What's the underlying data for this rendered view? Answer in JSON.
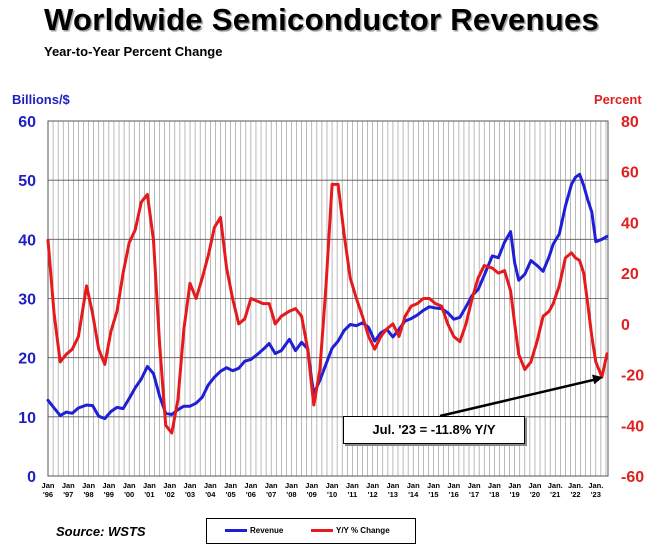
{
  "title": "Worldwide Semiconductor Revenues",
  "subtitle": "Year-to-Year Percent Change",
  "source": "Source: WSTS",
  "colors": {
    "revenue": "#1f1fd6",
    "yoy": "#e41a1c",
    "left_axis": "#1f1fbf",
    "right_axis": "#e0201f"
  },
  "chart_data": {
    "type": "line",
    "ylabel_left": "Billions/$",
    "ylabel_right": "Percent",
    "ylim_left": [
      0,
      60
    ],
    "ylim_right": [
      -60,
      80
    ],
    "yticks_left": [
      "0",
      "10",
      "20",
      "30",
      "40",
      "50",
      "60"
    ],
    "yticks_right": [
      "-60",
      "-40",
      "-20",
      "0",
      "20",
      "40",
      "60",
      "80"
    ],
    "x_range": [
      1996.0,
      2023.6
    ],
    "xticks": [
      {
        "x": 1996,
        "month": "Jan",
        "year": "'96"
      },
      {
        "x": 1997,
        "month": "Jan",
        "year": "'97"
      },
      {
        "x": 1998,
        "month": "Jan",
        "year": "'98"
      },
      {
        "x": 1999,
        "month": "Jan",
        "year": "'99"
      },
      {
        "x": 2000,
        "month": "Jan",
        "year": "'00"
      },
      {
        "x": 2001,
        "month": "Jan",
        "year": "'01"
      },
      {
        "x": 2002,
        "month": "Jan",
        "year": "'02"
      },
      {
        "x": 2003,
        "month": "Jan",
        "year": "'03"
      },
      {
        "x": 2004,
        "month": "Jan",
        "year": "'04"
      },
      {
        "x": 2005,
        "month": "Jan",
        "year": "'05"
      },
      {
        "x": 2006,
        "month": "Jan",
        "year": "'06"
      },
      {
        "x": 2007,
        "month": "Jan",
        "year": "'07"
      },
      {
        "x": 2008,
        "month": "Jan",
        "year": "'08"
      },
      {
        "x": 2009,
        "month": "Jan",
        "year": "'09"
      },
      {
        "x": 2010,
        "month": "Jan",
        "year": "'10"
      },
      {
        "x": 2011,
        "month": "Jan",
        "year": "'11"
      },
      {
        "x": 2012,
        "month": "Jan",
        "year": "'12"
      },
      {
        "x": 2013,
        "month": "Jan",
        "year": "'13"
      },
      {
        "x": 2014,
        "month": "Jan",
        "year": "'14"
      },
      {
        "x": 2015,
        "month": "Jan",
        "year": "'15"
      },
      {
        "x": 2016,
        "month": "Jan",
        "year": "'16"
      },
      {
        "x": 2017,
        "month": "Jan",
        "year": "'17"
      },
      {
        "x": 2018,
        "month": "Jan",
        "year": "'18"
      },
      {
        "x": 2019,
        "month": "Jan",
        "year": "'19"
      },
      {
        "x": 2020,
        "month": "Jan",
        "year": "'20"
      },
      {
        "x": 2021,
        "month": "Jan.",
        "year": "'21"
      },
      {
        "x": 2022,
        "month": "Jan.",
        "year": "'22"
      },
      {
        "x": 2023,
        "month": "Jan.",
        "year": "'23"
      }
    ],
    "grid": true,
    "legend_position": "bottom",
    "series": [
      {
        "name": "Revenue",
        "axis": "left",
        "points": [
          [
            1996.0,
            12.8
          ],
          [
            1996.3,
            11.5
          ],
          [
            1996.6,
            10.2
          ],
          [
            1996.9,
            10.8
          ],
          [
            1997.2,
            10.6
          ],
          [
            1997.5,
            11.5
          ],
          [
            1997.9,
            12.0
          ],
          [
            1998.2,
            11.9
          ],
          [
            1998.5,
            10.1
          ],
          [
            1998.8,
            9.7
          ],
          [
            1999.1,
            10.9
          ],
          [
            1999.4,
            11.6
          ],
          [
            1999.7,
            11.4
          ],
          [
            2000.0,
            13.1
          ],
          [
            2000.3,
            14.9
          ],
          [
            2000.6,
            16.4
          ],
          [
            2000.9,
            18.5
          ],
          [
            2001.2,
            17.3
          ],
          [
            2001.5,
            13.5
          ],
          [
            2001.8,
            10.6
          ],
          [
            2002.1,
            10.4
          ],
          [
            2002.4,
            11.2
          ],
          [
            2002.7,
            11.8
          ],
          [
            2003.0,
            11.8
          ],
          [
            2003.3,
            12.3
          ],
          [
            2003.6,
            13.3
          ],
          [
            2003.9,
            15.4
          ],
          [
            2004.2,
            16.7
          ],
          [
            2004.5,
            17.7
          ],
          [
            2004.8,
            18.3
          ],
          [
            2005.1,
            17.8
          ],
          [
            2005.4,
            18.2
          ],
          [
            2005.7,
            19.4
          ],
          [
            2006.0,
            19.7
          ],
          [
            2006.3,
            20.5
          ],
          [
            2006.6,
            21.4
          ],
          [
            2006.9,
            22.4
          ],
          [
            2007.2,
            20.7
          ],
          [
            2007.5,
            21.2
          ],
          [
            2007.9,
            23.1
          ],
          [
            2008.2,
            21.2
          ],
          [
            2008.5,
            22.6
          ],
          [
            2008.8,
            21.5
          ],
          [
            2009.0,
            16.1
          ],
          [
            2009.1,
            13.9
          ],
          [
            2009.4,
            16.2
          ],
          [
            2009.7,
            18.9
          ],
          [
            2010.0,
            21.6
          ],
          [
            2010.3,
            22.8
          ],
          [
            2010.6,
            24.6
          ],
          [
            2010.9,
            25.6
          ],
          [
            2011.2,
            25.4
          ],
          [
            2011.5,
            25.9
          ],
          [
            2011.8,
            25.1
          ],
          [
            2012.1,
            22.8
          ],
          [
            2012.4,
            24.2
          ],
          [
            2012.7,
            24.8
          ],
          [
            2013.0,
            23.5
          ],
          [
            2013.3,
            24.8
          ],
          [
            2013.6,
            26.2
          ],
          [
            2013.9,
            26.6
          ],
          [
            2014.2,
            27.2
          ],
          [
            2014.5,
            28.0
          ],
          [
            2014.8,
            28.6
          ],
          [
            2015.1,
            28.4
          ],
          [
            2015.4,
            28.3
          ],
          [
            2015.7,
            27.6
          ],
          [
            2016.0,
            26.5
          ],
          [
            2016.3,
            26.8
          ],
          [
            2016.6,
            28.6
          ],
          [
            2016.9,
            30.5
          ],
          [
            2017.2,
            31.5
          ],
          [
            2017.5,
            33.9
          ],
          [
            2017.9,
            37.2
          ],
          [
            2018.2,
            36.9
          ],
          [
            2018.5,
            39.5
          ],
          [
            2018.8,
            41.3
          ],
          [
            2019.0,
            36.0
          ],
          [
            2019.2,
            33.1
          ],
          [
            2019.5,
            34.1
          ],
          [
            2019.8,
            36.4
          ],
          [
            2020.1,
            35.6
          ],
          [
            2020.4,
            34.6
          ],
          [
            2020.7,
            37.1
          ],
          [
            2020.9,
            39.2
          ],
          [
            2021.2,
            40.9
          ],
          [
            2021.5,
            45.6
          ],
          [
            2021.8,
            49.3
          ],
          [
            2022.0,
            50.5
          ],
          [
            2022.2,
            51.0
          ],
          [
            2022.4,
            49.1
          ],
          [
            2022.6,
            46.7
          ],
          [
            2022.8,
            44.6
          ],
          [
            2023.0,
            39.6
          ],
          [
            2023.3,
            40.0
          ],
          [
            2023.55,
            40.5
          ]
        ]
      },
      {
        "name": "Y/Y % Change",
        "axis": "right",
        "points": [
          [
            1996.0,
            33
          ],
          [
            1996.3,
            4
          ],
          [
            1996.6,
            -15
          ],
          [
            1996.9,
            -12
          ],
          [
            1997.2,
            -10
          ],
          [
            1997.5,
            -5
          ],
          [
            1997.9,
            15
          ],
          [
            1998.2,
            4
          ],
          [
            1998.5,
            -10
          ],
          [
            1998.8,
            -16
          ],
          [
            1999.1,
            -3
          ],
          [
            1999.4,
            5
          ],
          [
            1999.7,
            20
          ],
          [
            2000.0,
            32
          ],
          [
            2000.3,
            37
          ],
          [
            2000.6,
            48
          ],
          [
            2000.9,
            51
          ],
          [
            2001.2,
            33
          ],
          [
            2001.5,
            -8
          ],
          [
            2001.8,
            -40
          ],
          [
            2002.1,
            -43
          ],
          [
            2002.4,
            -30
          ],
          [
            2002.7,
            -2
          ],
          [
            2003.0,
            16
          ],
          [
            2003.3,
            10
          ],
          [
            2003.6,
            18
          ],
          [
            2003.9,
            27
          ],
          [
            2004.2,
            38
          ],
          [
            2004.5,
            42
          ],
          [
            2004.8,
            22
          ],
          [
            2005.1,
            10
          ],
          [
            2005.4,
            0
          ],
          [
            2005.7,
            2
          ],
          [
            2006.0,
            10
          ],
          [
            2006.3,
            9
          ],
          [
            2006.6,
            8
          ],
          [
            2006.9,
            8
          ],
          [
            2007.2,
            0
          ],
          [
            2007.5,
            3
          ],
          [
            2007.9,
            5
          ],
          [
            2008.2,
            6
          ],
          [
            2008.5,
            3
          ],
          [
            2008.8,
            -10
          ],
          [
            2009.0,
            -25
          ],
          [
            2009.1,
            -32
          ],
          [
            2009.4,
            -18
          ],
          [
            2009.7,
            15
          ],
          [
            2010.0,
            55
          ],
          [
            2010.3,
            55
          ],
          [
            2010.6,
            35
          ],
          [
            2010.9,
            18
          ],
          [
            2011.2,
            10
          ],
          [
            2011.5,
            3
          ],
          [
            2011.8,
            -5
          ],
          [
            2012.1,
            -10
          ],
          [
            2012.4,
            -5
          ],
          [
            2012.7,
            -2
          ],
          [
            2013.0,
            0
          ],
          [
            2013.3,
            -5
          ],
          [
            2013.6,
            3
          ],
          [
            2013.9,
            7
          ],
          [
            2014.2,
            8
          ],
          [
            2014.5,
            10
          ],
          [
            2014.8,
            10
          ],
          [
            2015.1,
            8
          ],
          [
            2015.4,
            7
          ],
          [
            2015.7,
            0
          ],
          [
            2016.0,
            -5
          ],
          [
            2016.3,
            -7
          ],
          [
            2016.6,
            0
          ],
          [
            2016.9,
            10
          ],
          [
            2017.2,
            18
          ],
          [
            2017.5,
            23
          ],
          [
            2017.9,
            22
          ],
          [
            2018.2,
            20
          ],
          [
            2018.5,
            21
          ],
          [
            2018.8,
            13
          ],
          [
            2019.0,
            0
          ],
          [
            2019.2,
            -12
          ],
          [
            2019.5,
            -18
          ],
          [
            2019.8,
            -15
          ],
          [
            2020.1,
            -7
          ],
          [
            2020.4,
            3
          ],
          [
            2020.7,
            5
          ],
          [
            2020.9,
            8
          ],
          [
            2021.2,
            15
          ],
          [
            2021.5,
            26
          ],
          [
            2021.8,
            28
          ],
          [
            2022.0,
            26
          ],
          [
            2022.2,
            25
          ],
          [
            2022.4,
            20
          ],
          [
            2022.6,
            8
          ],
          [
            2022.8,
            -5
          ],
          [
            2023.0,
            -15
          ],
          [
            2023.3,
            -21
          ],
          [
            2023.55,
            -11.8
          ]
        ]
      }
    ],
    "annotations": [
      {
        "text": "Jul. '23 = -11.8% Y/Y",
        "target": {
          "x": 2023.35,
          "y": -21
        },
        "axis": "right"
      }
    ]
  }
}
